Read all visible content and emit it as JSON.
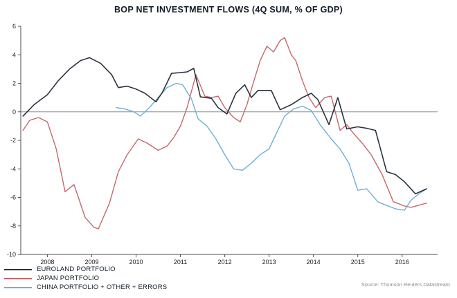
{
  "title": "BOP NET INVESTMENT FLOWS (4Q SUM, % OF GDP)",
  "source": "Source: Thomson Reuters Datastream",
  "colors": {
    "euroland": "#2a323d",
    "japan": "#c4686c",
    "china": "#6fafd4",
    "zero_line": "#8c8c8c",
    "axis": "#4d4d4d",
    "tick_text": "#1c1c1c",
    "title_text": "#131c28",
    "legend_text": "#131c28",
    "source_text": "#8a8a8a",
    "background": "#ffffff"
  },
  "legend": [
    {
      "label": "EUROLAND PORTFOLIO",
      "series": "euroland"
    },
    {
      "label": "JAPAN PORTFOLIO",
      "series": "japan"
    },
    {
      "label": "CHINA PORTFOLIO + OTHER + ERRORS",
      "series": "china"
    }
  ],
  "chart_data": {
    "type": "line",
    "title": "BOP NET INVESTMENT FLOWS (4Q SUM, % OF GDP)",
    "xlabel": "",
    "ylabel": "",
    "xlim": [
      2007.4,
      2016.8
    ],
    "ylim": [
      -10,
      6
    ],
    "yticks": [
      6,
      4,
      2,
      0,
      -2,
      -4,
      -6,
      -8,
      -10
    ],
    "xticks": [
      2008,
      2009,
      2010,
      2011,
      2012,
      2013,
      2014,
      2015,
      2016
    ],
    "grid": false,
    "zero_line": true,
    "legend_position": "bottom-left",
    "series": [
      {
        "name": "EUROLAND PORTFOLIO",
        "color_key": "euroland",
        "points": [
          [
            2007.45,
            -0.3
          ],
          [
            2007.7,
            0.5
          ],
          [
            2008.0,
            1.2
          ],
          [
            2008.25,
            2.2
          ],
          [
            2008.5,
            3.0
          ],
          [
            2008.75,
            3.6
          ],
          [
            2008.95,
            3.8
          ],
          [
            2009.2,
            3.4
          ],
          [
            2009.45,
            2.6
          ],
          [
            2009.6,
            1.7
          ],
          [
            2009.8,
            1.8
          ],
          [
            2010.0,
            1.6
          ],
          [
            2010.2,
            1.3
          ],
          [
            2010.45,
            0.7
          ],
          [
            2010.6,
            1.4
          ],
          [
            2010.8,
            2.7
          ],
          [
            2011.0,
            2.75
          ],
          [
            2011.15,
            2.8
          ],
          [
            2011.3,
            3.05
          ],
          [
            2011.45,
            1.05
          ],
          [
            2011.7,
            0.95
          ],
          [
            2011.85,
            0.3
          ],
          [
            2012.05,
            -0.15
          ],
          [
            2012.25,
            1.3
          ],
          [
            2012.45,
            1.9
          ],
          [
            2012.6,
            1.0
          ],
          [
            2012.75,
            1.5
          ],
          [
            2013.05,
            1.5
          ],
          [
            2013.25,
            0.15
          ],
          [
            2013.5,
            0.5
          ],
          [
            2013.75,
            1.0
          ],
          [
            2013.95,
            1.3
          ],
          [
            2014.1,
            0.85
          ],
          [
            2014.35,
            -0.9
          ],
          [
            2014.55,
            1.0
          ],
          [
            2014.75,
            -1.2
          ],
          [
            2015.0,
            -1.05
          ],
          [
            2015.2,
            -1.15
          ],
          [
            2015.4,
            -1.3
          ],
          [
            2015.65,
            -4.2
          ],
          [
            2015.85,
            -4.4
          ],
          [
            2016.05,
            -4.9
          ],
          [
            2016.3,
            -5.75
          ],
          [
            2016.55,
            -5.4
          ]
        ]
      },
      {
        "name": "JAPAN PORTFOLIO",
        "color_key": "japan",
        "points": [
          [
            2007.45,
            -1.3
          ],
          [
            2007.6,
            -0.6
          ],
          [
            2007.8,
            -0.4
          ],
          [
            2008.0,
            -0.7
          ],
          [
            2008.2,
            -2.6
          ],
          [
            2008.4,
            -5.6
          ],
          [
            2008.6,
            -5.1
          ],
          [
            2008.85,
            -7.4
          ],
          [
            2009.05,
            -8.1
          ],
          [
            2009.15,
            -8.2
          ],
          [
            2009.4,
            -6.4
          ],
          [
            2009.6,
            -4.2
          ],
          [
            2009.8,
            -3.0
          ],
          [
            2010.05,
            -1.9
          ],
          [
            2010.25,
            -2.2
          ],
          [
            2010.5,
            -2.7
          ],
          [
            2010.7,
            -2.4
          ],
          [
            2010.85,
            -1.8
          ],
          [
            2011.0,
            -1.0
          ],
          [
            2011.15,
            0.3
          ],
          [
            2011.35,
            2.6
          ],
          [
            2011.55,
            1.1
          ],
          [
            2011.7,
            1.0
          ],
          [
            2011.85,
            1.1
          ],
          [
            2012.0,
            0.3
          ],
          [
            2012.2,
            -0.4
          ],
          [
            2012.35,
            -0.7
          ],
          [
            2012.5,
            0.5
          ],
          [
            2012.65,
            2.1
          ],
          [
            2012.8,
            3.6
          ],
          [
            2012.95,
            4.6
          ],
          [
            2013.1,
            4.2
          ],
          [
            2013.25,
            5.0
          ],
          [
            2013.35,
            5.2
          ],
          [
            2013.5,
            4.0
          ],
          [
            2013.6,
            3.6
          ],
          [
            2013.75,
            2.2
          ],
          [
            2013.9,
            1.0
          ],
          [
            2014.05,
            0.3
          ],
          [
            2014.25,
            1.0
          ],
          [
            2014.4,
            1.1
          ],
          [
            2014.6,
            -1.3
          ],
          [
            2014.75,
            -0.9
          ],
          [
            2014.9,
            -1.5
          ],
          [
            2015.1,
            -2.2
          ],
          [
            2015.3,
            -3.0
          ],
          [
            2015.55,
            -4.4
          ],
          [
            2015.8,
            -6.3
          ],
          [
            2016.05,
            -6.6
          ],
          [
            2016.2,
            -6.7
          ],
          [
            2016.55,
            -6.4
          ]
        ]
      },
      {
        "name": "CHINA PORTFOLIO + OTHER + ERRORS",
        "color_key": "china",
        "points": [
          [
            2009.55,
            0.3
          ],
          [
            2009.75,
            0.2
          ],
          [
            2009.95,
            0.0
          ],
          [
            2010.1,
            -0.3
          ],
          [
            2010.3,
            0.3
          ],
          [
            2010.5,
            1.0
          ],
          [
            2010.7,
            1.7
          ],
          [
            2010.9,
            2.0
          ],
          [
            2011.05,
            1.9
          ],
          [
            2011.25,
            0.9
          ],
          [
            2011.4,
            -0.5
          ],
          [
            2011.6,
            -1.0
          ],
          [
            2011.8,
            -1.9
          ],
          [
            2012.0,
            -3.0
          ],
          [
            2012.2,
            -4.0
          ],
          [
            2012.4,
            -4.1
          ],
          [
            2012.6,
            -3.6
          ],
          [
            2012.8,
            -3.0
          ],
          [
            2013.0,
            -2.6
          ],
          [
            2013.15,
            -1.6
          ],
          [
            2013.35,
            -0.3
          ],
          [
            2013.55,
            0.2
          ],
          [
            2013.75,
            0.4
          ],
          [
            2013.95,
            0.1
          ],
          [
            2014.15,
            -0.9
          ],
          [
            2014.4,
            -1.9
          ],
          [
            2014.6,
            -2.6
          ],
          [
            2014.8,
            -3.6
          ],
          [
            2015.0,
            -5.5
          ],
          [
            2015.2,
            -5.4
          ],
          [
            2015.45,
            -6.3
          ],
          [
            2015.6,
            -6.5
          ],
          [
            2015.85,
            -6.8
          ],
          [
            2016.05,
            -6.9
          ],
          [
            2016.2,
            -6.2
          ],
          [
            2016.4,
            -5.7
          ],
          [
            2016.55,
            -5.4
          ]
        ]
      }
    ]
  }
}
